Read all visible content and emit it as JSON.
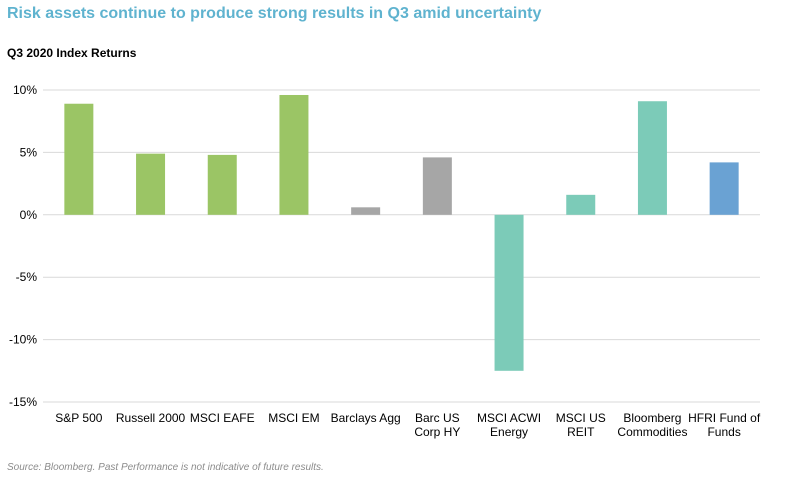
{
  "header": {
    "title": "Risk assets continue to produce strong results in Q3 amid uncertainty",
    "subtitle": "Q3 2020 Index Returns"
  },
  "footer": {
    "source": "Source: Bloomberg. Past Performance is not indicative of future results."
  },
  "colors": {
    "green": "#9bc565",
    "gray": "#a6a6a6",
    "teal": "#7ccbb8",
    "blue": "#6aa2d3",
    "gridline": "#d9d9d9",
    "title": "#5fb3cf"
  },
  "chart_data": {
    "type": "bar",
    "title": "Q3 2020 Index Returns",
    "ylim": [
      -15,
      10
    ],
    "yticks": [
      10,
      5,
      0,
      -5,
      -10,
      -15
    ],
    "ytick_labels": [
      "10%",
      "5%",
      "0%",
      "-5%",
      "-10%",
      "-15%"
    ],
    "grid": true,
    "legend": "none",
    "categories": [
      [
        "S&P 500"
      ],
      [
        "Russell 2000"
      ],
      [
        "MSCI EAFE"
      ],
      [
        "MSCI EM"
      ],
      [
        "Barclays Agg"
      ],
      [
        "Barc US",
        "Corp HY"
      ],
      [
        "MSCI ACWI",
        "Energy"
      ],
      [
        "MSCI US",
        "REIT"
      ],
      [
        "Bloomberg",
        "Commodities"
      ],
      [
        "HFRI Fund of",
        "Funds"
      ]
    ],
    "values": [
      8.9,
      4.9,
      4.8,
      9.6,
      0.6,
      4.6,
      -12.5,
      1.6,
      9.1,
      4.2
    ],
    "bar_colors": [
      "green",
      "green",
      "green",
      "green",
      "gray",
      "gray",
      "teal",
      "teal",
      "teal",
      "blue"
    ]
  }
}
